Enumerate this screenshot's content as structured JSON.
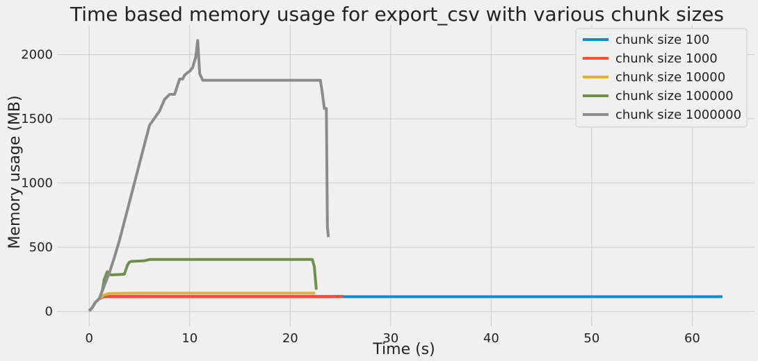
{
  "chart_data": {
    "type": "line",
    "title": "Time based memory usage for export_csv with various chunk sizes",
    "xlabel": "Time (s)",
    "ylabel": "Memory usage (MB)",
    "xlim": [
      -3.2,
      66.2
    ],
    "ylim": [
      -115,
      2230
    ],
    "xticks": [
      0,
      10,
      20,
      30,
      40,
      50,
      60
    ],
    "yticks": [
      0,
      500,
      1000,
      1500,
      2000
    ],
    "grid": true,
    "legend_position": "top-right",
    "series": [
      {
        "name": "chunk size 100",
        "color": "#008fd5",
        "x": [
          0,
          0.3,
          0.6,
          1.0,
          1.5,
          10,
          20,
          25,
          30,
          40,
          50,
          60,
          63
        ],
        "y": [
          5,
          30,
          70,
          100,
          115,
          115,
          115,
          115,
          115,
          115,
          115,
          115,
          115
        ]
      },
      {
        "name": "chunk size 1000",
        "color": "#fc4f30",
        "x": [
          0,
          0.3,
          0.6,
          1.0,
          1.5,
          5,
          10,
          15,
          20,
          25.3
        ],
        "y": [
          5,
          30,
          70,
          100,
          118,
          118,
          118,
          118,
          118,
          118
        ]
      },
      {
        "name": "chunk size 10000",
        "color": "#e5ae38",
        "x": [
          0,
          0.3,
          0.6,
          1.0,
          1.5,
          2.0,
          4,
          8,
          12,
          16,
          20,
          22.5
        ],
        "y": [
          5,
          30,
          70,
          100,
          130,
          140,
          142,
          143,
          143,
          143,
          143,
          143
        ]
      },
      {
        "name": "chunk size 100000",
        "color": "#6d904f",
        "x": [
          0,
          0.3,
          0.6,
          1.0,
          1.3,
          1.5,
          1.8,
          2.0,
          2.2,
          3.5,
          3.8,
          4.0,
          4.2,
          5.5,
          6.0,
          8,
          10,
          12,
          14,
          16,
          18,
          20,
          22.2,
          22.4,
          22.6
        ],
        "y": [
          5,
          30,
          70,
          100,
          160,
          250,
          310,
          290,
          285,
          290,
          360,
          385,
          390,
          395,
          405,
          405,
          405,
          405,
          405,
          405,
          405,
          405,
          405,
          350,
          170
        ]
      },
      {
        "name": "chunk size 1000000",
        "color": "#8b8b8b",
        "x": [
          0,
          0.3,
          0.6,
          1.0,
          1.5,
          2.0,
          2.5,
          3.0,
          3.5,
          4.0,
          5.0,
          6.0,
          7.0,
          7.5,
          8.0,
          8.5,
          9.0,
          9.3,
          9.5,
          9.8,
          10.0,
          10.3,
          10.6,
          10.8,
          11.0,
          11.3,
          12,
          14,
          16,
          18,
          20,
          22,
          23.0,
          23.2,
          23.4,
          23.6,
          23.7,
          23.8
        ],
        "y": [
          5,
          30,
          70,
          100,
          200,
          300,
          420,
          550,
          700,
          850,
          1150,
          1450,
          1560,
          1650,
          1690,
          1690,
          1810,
          1810,
          1840,
          1860,
          1870,
          1900,
          1980,
          2110,
          1850,
          1800,
          1800,
          1800,
          1800,
          1800,
          1800,
          1800,
          1800,
          1700,
          1580,
          1580,
          660,
          580
        ]
      }
    ]
  }
}
